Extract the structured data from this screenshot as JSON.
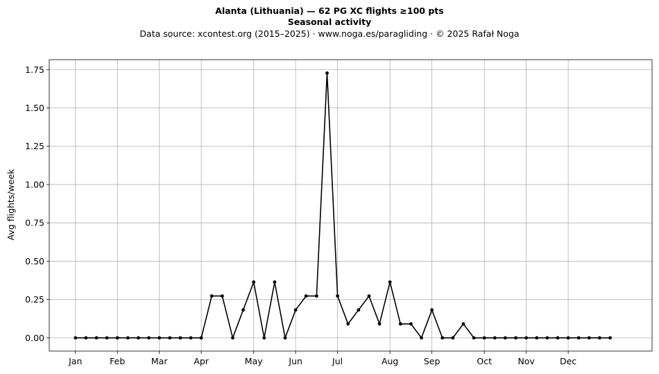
{
  "chart_data": {
    "type": "line",
    "title": "Alanta (Lithuania)  —  62 PG XC flights ≥100 pts",
    "subtitle": "Seasonal activity",
    "source": "Data source: xcontest.org (2015–2025)  ·  www.noga.es/paragliding  ·  © 2025 Rafał Noga",
    "xlabel": "",
    "ylabel": "Avg flights/week",
    "ylim": [
      -0.0864,
      1.8145
    ],
    "xlim": [
      -2.5,
      55
    ],
    "grid": true,
    "line_color": "#000000",
    "x_ticks": [
      {
        "x": 0,
        "label": "Jan"
      },
      {
        "x": 4,
        "label": "Feb"
      },
      {
        "x": 8,
        "label": "Mar"
      },
      {
        "x": 12,
        "label": "Apr"
      },
      {
        "x": 17,
        "label": "May"
      },
      {
        "x": 21,
        "label": "Jun"
      },
      {
        "x": 25,
        "label": "Jul"
      },
      {
        "x": 30,
        "label": "Aug"
      },
      {
        "x": 34,
        "label": "Sep"
      },
      {
        "x": 39,
        "label": "Oct"
      },
      {
        "x": 43,
        "label": "Nov"
      },
      {
        "x": 47,
        "label": "Dec"
      }
    ],
    "y_ticks": [
      {
        "y": 0.0,
        "label": "0.00"
      },
      {
        "y": 0.25,
        "label": "0.25"
      },
      {
        "y": 0.5,
        "label": "0.50"
      },
      {
        "y": 0.75,
        "label": "0.75"
      },
      {
        "y": 1.0,
        "label": "1.00"
      },
      {
        "y": 1.25,
        "label": "1.25"
      },
      {
        "y": 1.5,
        "label": "1.50"
      },
      {
        "y": 1.75,
        "label": "1.75"
      }
    ],
    "x": [
      0,
      1,
      2,
      3,
      4,
      5,
      6,
      7,
      8,
      9,
      10,
      11,
      12,
      13,
      14,
      15,
      16,
      17,
      18,
      19,
      20,
      21,
      22,
      23,
      24,
      25,
      26,
      27,
      28,
      29,
      30,
      31,
      32,
      33,
      34,
      35,
      36,
      37,
      38,
      39,
      40,
      41,
      42,
      43,
      44,
      45,
      46,
      47,
      48,
      49,
      50,
      51
    ],
    "values": [
      0,
      0,
      0,
      0,
      0,
      0,
      0,
      0,
      0,
      0,
      0,
      0,
      0,
      0.273,
      0.273,
      0,
      0.182,
      0.364,
      0,
      0.364,
      0,
      0.182,
      0.273,
      0.273,
      1.727,
      0.273,
      0.091,
      0.182,
      0.273,
      0.091,
      0.364,
      0.091,
      0.091,
      0,
      0.182,
      0,
      0,
      0.091,
      0,
      0,
      0,
      0,
      0,
      0,
      0,
      0,
      0,
      0,
      0,
      0,
      0,
      0
    ]
  }
}
